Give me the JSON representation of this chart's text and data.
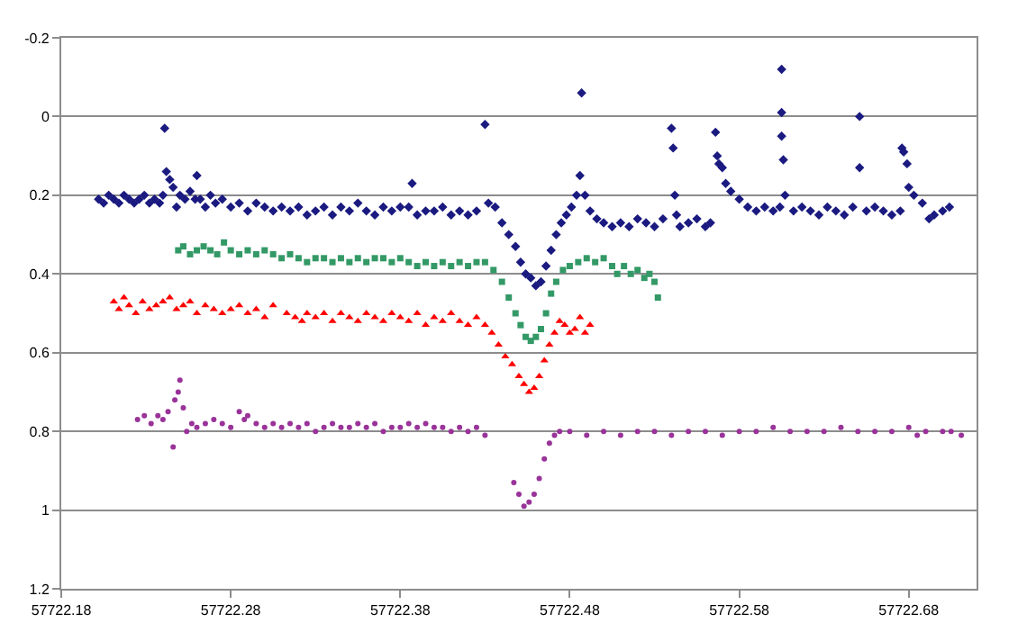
{
  "chart_data": {
    "type": "scatter",
    "xlim": [
      57722.18,
      57722.72
    ],
    "xticks": [
      57722.18,
      57722.28,
      57722.38,
      57722.48,
      57722.58,
      57722.68
    ],
    "ylim": [
      1.2,
      -0.2
    ],
    "yticks": [
      -0.2,
      0,
      0.2,
      0.4,
      0.6,
      0.8,
      1,
      1.2
    ],
    "grid": "y",
    "series": [
      {
        "color": "#1a1a80",
        "marker": "diamond",
        "x": [
          57722.202,
          57722.205,
          57722.208,
          57722.211,
          57722.214,
          57722.217,
          57722.22,
          57722.223,
          57722.226,
          57722.229,
          57722.232,
          57722.235,
          57722.238,
          57722.24,
          57722.241,
          57722.242,
          57722.244,
          57722.246,
          57722.248,
          57722.25,
          57722.253,
          57722.256,
          57722.259,
          57722.26,
          57722.262,
          57722.265,
          57722.268,
          57722.271,
          57722.275,
          57722.28,
          57722.285,
          57722.29,
          57722.295,
          57722.3,
          57722.305,
          57722.31,
          57722.315,
          57722.32,
          57722.325,
          57722.33,
          57722.335,
          57722.34,
          57722.345,
          57722.35,
          57722.355,
          57722.36,
          57722.365,
          57722.37,
          57722.375,
          57722.38,
          57722.385,
          57722.387,
          57722.39,
          57722.395,
          57722.4,
          57722.405,
          57722.41,
          57722.415,
          57722.42,
          57722.425,
          57722.43,
          57722.432,
          57722.436,
          57722.44,
          57722.444,
          57722.448,
          57722.451,
          57722.454,
          57722.457,
          57722.46,
          57722.463,
          57722.466,
          57722.469,
          57722.472,
          57722.475,
          57722.478,
          57722.481,
          57722.484,
          57722.486,
          57722.487,
          57722.489,
          57722.492,
          57722.496,
          57722.5,
          57722.505,
          57722.51,
          57722.515,
          57722.52,
          57722.525,
          57722.53,
          57722.535,
          57722.54,
          57722.541,
          57722.542,
          57722.543,
          57722.545,
          57722.55,
          57722.555,
          57722.56,
          57722.563,
          57722.566,
          57722.567,
          57722.568,
          57722.57,
          57722.572,
          57722.575,
          57722.58,
          57722.585,
          57722.59,
          57722.595,
          57722.6,
          57722.604,
          57722.605,
          57722.605,
          57722.605,
          57722.606,
          57722.607,
          57722.612,
          57722.617,
          57722.622,
          57722.627,
          57722.632,
          57722.637,
          57722.642,
          57722.647,
          57722.651,
          57722.651,
          57722.655,
          57722.66,
          57722.665,
          57722.67,
          57722.675,
          57722.676,
          57722.677,
          57722.679,
          57722.68,
          57722.683,
          57722.688,
          57722.692,
          57722.695,
          57722.7,
          57722.704
        ],
        "values": [
          0.21,
          0.22,
          0.2,
          0.21,
          0.22,
          0.2,
          0.21,
          0.22,
          0.21,
          0.2,
          0.22,
          0.21,
          0.22,
          0.2,
          0.03,
          0.14,
          0.16,
          0.18,
          0.23,
          0.2,
          0.21,
          0.19,
          0.21,
          0.15,
          0.21,
          0.23,
          0.2,
          0.22,
          0.21,
          0.23,
          0.22,
          0.24,
          0.22,
          0.23,
          0.24,
          0.23,
          0.24,
          0.23,
          0.25,
          0.24,
          0.23,
          0.25,
          0.23,
          0.24,
          0.22,
          0.24,
          0.25,
          0.23,
          0.24,
          0.23,
          0.23,
          0.17,
          0.25,
          0.24,
          0.24,
          0.23,
          0.25,
          0.24,
          0.25,
          0.24,
          0.02,
          0.22,
          0.23,
          0.27,
          0.3,
          0.33,
          0.37,
          0.4,
          0.41,
          0.43,
          0.42,
          0.38,
          0.34,
          0.3,
          0.27,
          0.25,
          0.23,
          0.2,
          0.15,
          -0.06,
          0.2,
          0.24,
          0.26,
          0.27,
          0.28,
          0.27,
          0.28,
          0.26,
          0.27,
          0.28,
          0.26,
          0.03,
          0.08,
          0.2,
          0.25,
          0.28,
          0.27,
          0.26,
          0.28,
          0.27,
          0.04,
          0.1,
          0.12,
          0.13,
          0.17,
          0.19,
          0.21,
          0.23,
          0.24,
          0.23,
          0.24,
          0.23,
          -0.12,
          -0.01,
          0.05,
          0.11,
          0.2,
          0.24,
          0.23,
          0.24,
          0.25,
          0.23,
          0.24,
          0.25,
          0.23,
          0.0,
          0.13,
          0.24,
          0.23,
          0.24,
          0.25,
          0.24,
          0.08,
          0.09,
          0.12,
          0.18,
          0.2,
          0.22,
          0.26,
          0.25,
          0.24,
          0.23
        ]
      },
      {
        "color": "#339966",
        "marker": "square",
        "x": [
          57722.249,
          57722.252,
          57722.256,
          57722.26,
          57722.264,
          57722.268,
          57722.272,
          57722.276,
          57722.28,
          57722.285,
          57722.29,
          57722.295,
          57722.3,
          57722.305,
          57722.31,
          57722.315,
          57722.32,
          57722.325,
          57722.33,
          57722.335,
          57722.34,
          57722.345,
          57722.35,
          57722.355,
          57722.36,
          57722.365,
          57722.37,
          57722.375,
          57722.38,
          57722.385,
          57722.39,
          57722.395,
          57722.4,
          57722.405,
          57722.41,
          57722.415,
          57722.42,
          57722.425,
          57722.43,
          57722.435,
          57722.44,
          57722.444,
          57722.448,
          57722.451,
          57722.454,
          57722.457,
          57722.46,
          57722.463,
          57722.466,
          57722.469,
          57722.472,
          57722.476,
          57722.48,
          57722.485,
          57722.49,
          57722.495,
          57722.5,
          57722.505,
          57722.508,
          57722.512,
          57722.516,
          57722.52,
          57722.524,
          57722.527,
          57722.53,
          57722.532
        ],
        "values": [
          0.34,
          0.33,
          0.35,
          0.34,
          0.33,
          0.34,
          0.35,
          0.32,
          0.34,
          0.35,
          0.34,
          0.35,
          0.34,
          0.35,
          0.36,
          0.35,
          0.36,
          0.37,
          0.36,
          0.36,
          0.37,
          0.36,
          0.37,
          0.36,
          0.37,
          0.36,
          0.36,
          0.37,
          0.36,
          0.37,
          0.38,
          0.37,
          0.38,
          0.37,
          0.38,
          0.37,
          0.38,
          0.37,
          0.37,
          0.39,
          0.42,
          0.46,
          0.5,
          0.53,
          0.56,
          0.57,
          0.56,
          0.54,
          0.5,
          0.45,
          0.42,
          0.39,
          0.38,
          0.37,
          0.36,
          0.37,
          0.36,
          0.38,
          0.4,
          0.38,
          0.4,
          0.39,
          0.41,
          0.4,
          0.42,
          0.46
        ]
      },
      {
        "color": "#ff0000",
        "marker": "triangle",
        "x": [
          57722.211,
          57722.214,
          57722.217,
          57722.22,
          57722.224,
          57722.228,
          57722.232,
          57722.236,
          57722.24,
          57722.244,
          57722.248,
          57722.252,
          57722.256,
          57722.26,
          57722.265,
          57722.27,
          57722.275,
          57722.28,
          57722.285,
          57722.29,
          57722.295,
          57722.3,
          57722.305,
          57722.313,
          57722.318,
          57722.322,
          57722.325,
          57722.33,
          57722.335,
          57722.34,
          57722.345,
          57722.35,
          57722.355,
          57722.36,
          57722.365,
          57722.37,
          57722.375,
          57722.38,
          57722.385,
          57722.39,
          57722.395,
          57722.4,
          57722.405,
          57722.41,
          57722.415,
          57722.42,
          57722.425,
          57722.43,
          57722.434,
          57722.438,
          57722.442,
          57722.446,
          57722.45,
          57722.453,
          57722.456,
          57722.459,
          57722.462,
          57722.465,
          57722.468,
          57722.471,
          57722.474,
          57722.477,
          57722.48,
          57722.483,
          57722.486,
          57722.489,
          57722.492
        ],
        "values": [
          0.47,
          0.49,
          0.46,
          0.48,
          0.5,
          0.47,
          0.49,
          0.48,
          0.47,
          0.46,
          0.49,
          0.48,
          0.47,
          0.5,
          0.48,
          0.49,
          0.5,
          0.49,
          0.48,
          0.5,
          0.49,
          0.51,
          0.48,
          0.5,
          0.51,
          0.52,
          0.5,
          0.51,
          0.5,
          0.52,
          0.5,
          0.51,
          0.52,
          0.5,
          0.51,
          0.52,
          0.5,
          0.51,
          0.52,
          0.5,
          0.53,
          0.51,
          0.52,
          0.5,
          0.52,
          0.53,
          0.51,
          0.53,
          0.55,
          0.58,
          0.61,
          0.63,
          0.66,
          0.68,
          0.7,
          0.69,
          0.66,
          0.62,
          0.58,
          0.55,
          0.52,
          0.53,
          0.55,
          0.54,
          0.51,
          0.55,
          0.53
        ]
      },
      {
        "color": "#993399",
        "marker": "circle",
        "x": [
          57722.225,
          57722.229,
          57722.233,
          57722.237,
          57722.24,
          57722.243,
          57722.246,
          57722.247,
          57722.249,
          57722.25,
          57722.252,
          57722.254,
          57722.257,
          57722.26,
          57722.265,
          57722.27,
          57722.275,
          57722.28,
          57722.285,
          57722.288,
          57722.29,
          57722.295,
          57722.3,
          57722.305,
          57722.31,
          57722.315,
          57722.32,
          57722.325,
          57722.33,
          57722.335,
          57722.34,
          57722.345,
          57722.35,
          57722.355,
          57722.36,
          57722.365,
          57722.37,
          57722.375,
          57722.38,
          57722.385,
          57722.39,
          57722.395,
          57722.4,
          57722.405,
          57722.41,
          57722.415,
          57722.42,
          57722.425,
          57722.43,
          57722.447,
          57722.45,
          57722.453,
          57722.456,
          57722.459,
          57722.462,
          57722.465,
          57722.468,
          57722.471,
          57722.474,
          57722.48,
          57722.49,
          57722.5,
          57722.51,
          57722.52,
          57722.53,
          57722.54,
          57722.55,
          57722.56,
          57722.57,
          57722.58,
          57722.59,
          57722.6,
          57722.61,
          57722.62,
          57722.63,
          57722.64,
          57722.65,
          57722.66,
          57722.67,
          57722.68,
          57722.685,
          57722.69,
          57722.7,
          57722.705,
          57722.711
        ],
        "values": [
          0.77,
          0.76,
          0.78,
          0.76,
          0.77,
          0.75,
          0.84,
          0.72,
          0.7,
          0.67,
          0.74,
          0.8,
          0.78,
          0.79,
          0.78,
          0.77,
          0.78,
          0.79,
          0.75,
          0.77,
          0.76,
          0.78,
          0.79,
          0.78,
          0.79,
          0.78,
          0.79,
          0.78,
          0.8,
          0.79,
          0.78,
          0.79,
          0.79,
          0.78,
          0.79,
          0.78,
          0.8,
          0.79,
          0.79,
          0.78,
          0.79,
          0.78,
          0.79,
          0.79,
          0.8,
          0.79,
          0.8,
          0.79,
          0.81,
          0.93,
          0.96,
          0.99,
          0.98,
          0.96,
          0.92,
          0.87,
          0.83,
          0.81,
          0.8,
          0.8,
          0.81,
          0.8,
          0.81,
          0.8,
          0.8,
          0.81,
          0.8,
          0.8,
          0.81,
          0.8,
          0.8,
          0.79,
          0.8,
          0.8,
          0.8,
          0.79,
          0.8,
          0.8,
          0.8,
          0.79,
          0.81,
          0.8,
          0.8,
          0.8,
          0.81
        ]
      }
    ]
  }
}
